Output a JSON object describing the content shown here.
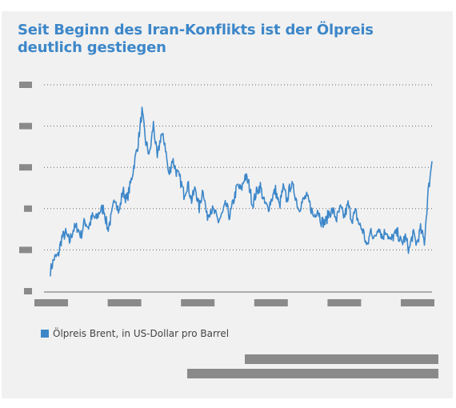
{
  "title": "Seit Beginn des Iran-Konflikts ist der Ölpreis deutlich gestiegen",
  "colors": {
    "line": "#3d87c9",
    "grid": "#666666",
    "placeholder": "#8a8a8a",
    "background": "#f1f1f1",
    "title": "#3d87c9"
  },
  "chart_data": {
    "type": "line",
    "title": "Seit Beginn des Iran-Konflikts ist der Ölpreis deutlich gestiegen",
    "xlabel": "",
    "ylabel": "",
    "x_range": [
      0,
      100
    ],
    "ylim": [
      0,
      5
    ],
    "y_gridlines": [
      1,
      2,
      3,
      4,
      5
    ],
    "grid": "horizontal dotted",
    "legend_position": "bottom-left",
    "axis_tick_labels_redacted": true,
    "x_tick_count": 6,
    "y_tick_count": 6,
    "series": [
      {
        "name": "Ölpreis Brent, in US-Dollar pro Barrel",
        "color": "#3d87c9",
        "x": [
          0,
          1,
          2,
          3,
          4,
          5,
          6,
          7,
          8,
          9,
          10,
          11,
          12,
          13,
          14,
          15,
          16,
          17,
          18,
          19,
          20,
          21,
          22,
          23,
          24,
          25,
          26,
          27,
          28,
          29,
          30,
          31,
          32,
          33,
          34,
          35,
          36,
          37,
          38,
          39,
          40,
          41,
          42,
          43,
          44,
          45,
          46,
          47,
          48,
          49,
          50,
          51,
          52,
          53,
          54,
          55,
          56,
          57,
          58,
          59,
          60,
          61,
          62,
          63,
          64,
          65,
          66,
          67,
          68,
          69,
          70,
          71,
          72,
          73,
          74,
          75,
          76,
          77,
          78,
          79,
          80,
          81,
          82,
          83,
          84,
          85,
          86,
          87,
          88,
          89,
          90,
          91,
          92,
          93,
          94,
          95,
          96,
          97,
          98,
          99,
          100
        ],
        "values": [
          0.5,
          0.8,
          0.85,
          1.3,
          1.4,
          1.2,
          1.5,
          1.55,
          1.35,
          1.7,
          1.55,
          1.8,
          1.75,
          1.95,
          2.0,
          1.5,
          1.8,
          2.3,
          1.9,
          2.45,
          2.2,
          2.6,
          3.1,
          3.6,
          4.35,
          3.6,
          3.3,
          4.05,
          3.2,
          3.8,
          3.6,
          2.8,
          3.2,
          2.9,
          2.7,
          2.35,
          2.6,
          2.2,
          2.5,
          2.0,
          2.5,
          1.8,
          2.0,
          1.9,
          1.7,
          1.85,
          2.1,
          1.8,
          2.2,
          2.55,
          2.45,
          2.8,
          2.6,
          2.1,
          2.4,
          2.55,
          2.15,
          2.0,
          2.25,
          2.45,
          2.05,
          2.5,
          2.2,
          2.6,
          2.4,
          2.0,
          2.15,
          2.3,
          2.1,
          1.8,
          2.0,
          1.7,
          1.65,
          1.9,
          1.95,
          1.75,
          2.0,
          1.8,
          2.1,
          1.75,
          1.9,
          1.6,
          1.45,
          1.05,
          1.5,
          1.25,
          1.6,
          1.3,
          1.5,
          1.2,
          1.35,
          1.4,
          1.15,
          1.3,
          1.0,
          1.4,
          1.15,
          1.5,
          1.2,
          2.4,
          3.15
        ]
      }
    ]
  }
}
